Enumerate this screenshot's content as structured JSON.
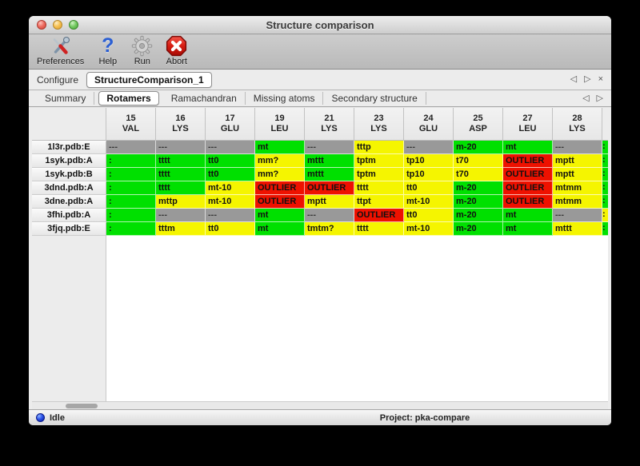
{
  "window": {
    "title": "Structure comparison"
  },
  "toolbar": {
    "buttons": [
      {
        "label": "Preferences"
      },
      {
        "label": "Help",
        "glyph": "?"
      },
      {
        "label": "Run"
      },
      {
        "label": "Abort"
      }
    ]
  },
  "configure": {
    "label": "Configure",
    "value": "StructureComparison_1",
    "prev_glyph": "◁",
    "next_glyph": "▷",
    "close_glyph": "×"
  },
  "tab_bar": {
    "tabs": [
      "Summary",
      "Rotamers",
      "Ramachandran",
      "Missing atoms",
      "Secondary structure"
    ],
    "selected": "Rotamers",
    "prev_glyph": "◁",
    "next_glyph": "▷"
  },
  "colors": {
    "green": "#00e000",
    "yellow": "#f5f500",
    "red": "#ee1100",
    "gray": "#999999"
  },
  "table": {
    "columns": [
      {
        "num": "15",
        "res": "VAL"
      },
      {
        "num": "16",
        "res": "LYS"
      },
      {
        "num": "17",
        "res": "GLU"
      },
      {
        "num": "19",
        "res": "LEU"
      },
      {
        "num": "21",
        "res": "LYS"
      },
      {
        "num": "23",
        "res": "LYS"
      },
      {
        "num": "24",
        "res": "GLU"
      },
      {
        "num": "25",
        "res": "ASP"
      },
      {
        "num": "27",
        "res": "LEU"
      },
      {
        "num": "28",
        "res": "LYS"
      }
    ],
    "rows": [
      {
        "label": "1l3r.pdb:E",
        "cells": [
          {
            "t": "---",
            "c": "gray"
          },
          {
            "t": "---",
            "c": "gray"
          },
          {
            "t": "---",
            "c": "gray"
          },
          {
            "t": "mt",
            "c": "green"
          },
          {
            "t": "---",
            "c": "gray"
          },
          {
            "t": "tttp",
            "c": "yellow"
          },
          {
            "t": "---",
            "c": "gray"
          },
          {
            "t": "m-20",
            "c": "green"
          },
          {
            "t": "mt",
            "c": "green"
          },
          {
            "t": "---",
            "c": "gray"
          }
        ],
        "edge": {
          "t": ":",
          "c": "green"
        }
      },
      {
        "label": "1syk.pdb:A",
        "cells": [
          {
            "t": ":",
            "c": "green"
          },
          {
            "t": "tttt",
            "c": "green"
          },
          {
            "t": "tt0",
            "c": "green"
          },
          {
            "t": "mm?",
            "c": "yellow"
          },
          {
            "t": "mttt",
            "c": "green"
          },
          {
            "t": "tptm",
            "c": "yellow"
          },
          {
            "t": "tp10",
            "c": "yellow"
          },
          {
            "t": "t70",
            "c": "yellow"
          },
          {
            "t": "OUTLIER",
            "c": "red"
          },
          {
            "t": "mptt",
            "c": "yellow"
          }
        ],
        "edge": {
          "t": ":",
          "c": "green"
        }
      },
      {
        "label": "1syk.pdb:B",
        "cells": [
          {
            "t": ":",
            "c": "green"
          },
          {
            "t": "tttt",
            "c": "green"
          },
          {
            "t": "tt0",
            "c": "green"
          },
          {
            "t": "mm?",
            "c": "yellow"
          },
          {
            "t": "mttt",
            "c": "green"
          },
          {
            "t": "tptm",
            "c": "yellow"
          },
          {
            "t": "tp10",
            "c": "yellow"
          },
          {
            "t": "t70",
            "c": "yellow"
          },
          {
            "t": "OUTLIER",
            "c": "red"
          },
          {
            "t": "mptt",
            "c": "yellow"
          }
        ],
        "edge": {
          "t": ":",
          "c": "green"
        }
      },
      {
        "label": "3dnd.pdb:A",
        "cells": [
          {
            "t": ":",
            "c": "green"
          },
          {
            "t": "tttt",
            "c": "green"
          },
          {
            "t": "mt-10",
            "c": "yellow"
          },
          {
            "t": "OUTLIER",
            "c": "red"
          },
          {
            "t": "OUTLIER",
            "c": "red"
          },
          {
            "t": "tttt",
            "c": "yellow"
          },
          {
            "t": "tt0",
            "c": "yellow"
          },
          {
            "t": "m-20",
            "c": "green"
          },
          {
            "t": "OUTLIER",
            "c": "red"
          },
          {
            "t": "mtmm",
            "c": "yellow"
          }
        ],
        "edge": {
          "t": ":",
          "c": "green"
        }
      },
      {
        "label": "3dne.pdb:A",
        "cells": [
          {
            "t": ":",
            "c": "green"
          },
          {
            "t": "mttp",
            "c": "yellow"
          },
          {
            "t": "mt-10",
            "c": "yellow"
          },
          {
            "t": "OUTLIER",
            "c": "red"
          },
          {
            "t": "mptt",
            "c": "yellow"
          },
          {
            "t": "ttpt",
            "c": "yellow"
          },
          {
            "t": "mt-10",
            "c": "yellow"
          },
          {
            "t": "m-20",
            "c": "green"
          },
          {
            "t": "OUTLIER",
            "c": "red"
          },
          {
            "t": "mtmm",
            "c": "yellow"
          }
        ],
        "edge": {
          "t": ":",
          "c": "green"
        }
      },
      {
        "label": "3fhi.pdb:A",
        "cells": [
          {
            "t": ":",
            "c": "green"
          },
          {
            "t": "---",
            "c": "gray"
          },
          {
            "t": "---",
            "c": "gray"
          },
          {
            "t": "mt",
            "c": "green"
          },
          {
            "t": "---",
            "c": "gray"
          },
          {
            "t": "OUTLIER",
            "c": "red"
          },
          {
            "t": "tt0",
            "c": "yellow"
          },
          {
            "t": "m-20",
            "c": "green"
          },
          {
            "t": "mt",
            "c": "green"
          },
          {
            "t": "---",
            "c": "gray"
          }
        ],
        "edge": {
          "t": ":",
          "c": "yellow"
        }
      },
      {
        "label": "3fjq.pdb:E",
        "cells": [
          {
            "t": ":",
            "c": "green"
          },
          {
            "t": "tttm",
            "c": "yellow"
          },
          {
            "t": "tt0",
            "c": "yellow"
          },
          {
            "t": "mt",
            "c": "green"
          },
          {
            "t": "tmtm?",
            "c": "yellow"
          },
          {
            "t": "tttt",
            "c": "yellow"
          },
          {
            "t": "mt-10",
            "c": "yellow"
          },
          {
            "t": "m-20",
            "c": "green"
          },
          {
            "t": "mt",
            "c": "green"
          },
          {
            "t": "mttt",
            "c": "yellow"
          }
        ],
        "edge": {
          "t": ":",
          "c": "green"
        }
      }
    ]
  },
  "status_bar": {
    "status": "Idle",
    "project": "Project: pka-compare"
  }
}
